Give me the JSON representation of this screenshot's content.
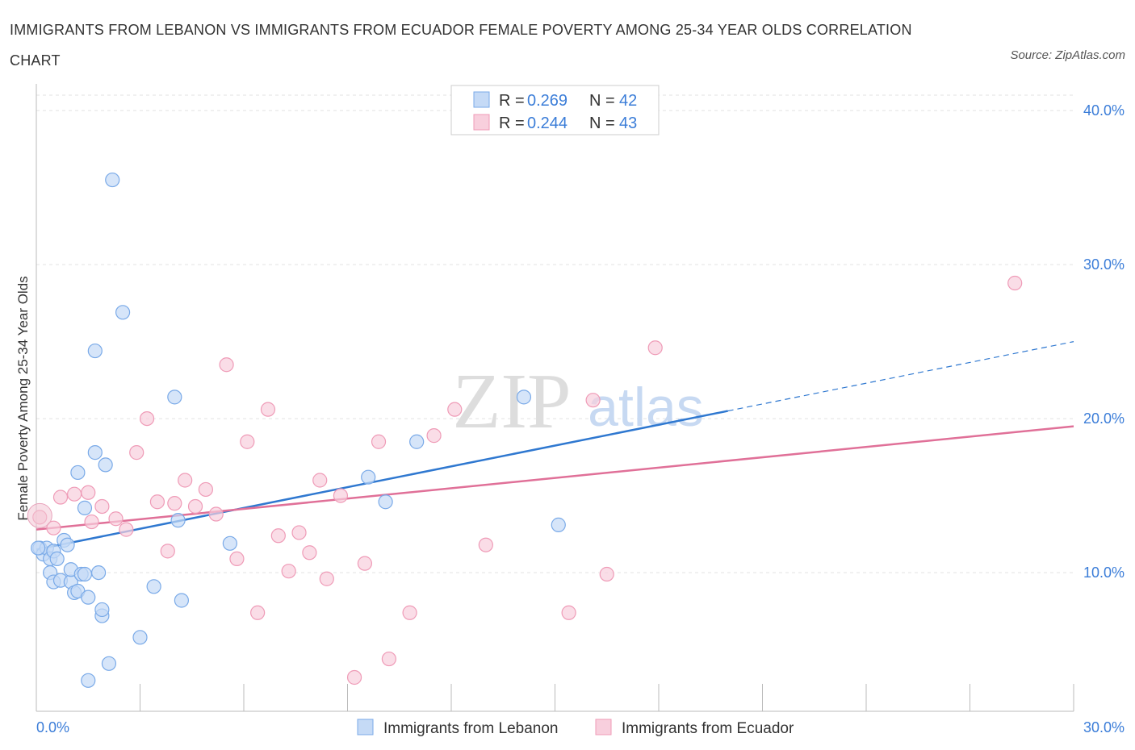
{
  "header": {
    "title": "IMMIGRANTS FROM LEBANON VS IMMIGRANTS FROM ECUADOR FEMALE POVERTY AMONG 25-34 YEAR OLDS CORRELATION CHART",
    "source": "Source: ZipAtlas.com"
  },
  "watermark": {
    "zip": "ZIP",
    "atlas": "atlas"
  },
  "legend": {
    "rows": [
      {
        "r_label": "R =",
        "r_value": "0.269",
        "n_label": "N =",
        "n_value": "42"
      },
      {
        "r_label": "R =",
        "r_value": "0.244",
        "n_label": "N =",
        "n_value": "43"
      }
    ]
  },
  "chart_data": {
    "type": "scatter",
    "ylabel": "Female Poverty Among 25-34 Year Olds",
    "xlim": [
      0,
      30
    ],
    "ylim": [
      1,
      41
    ],
    "x_tick_labels": [
      {
        "value": 0,
        "label": "0.0%"
      },
      {
        "value": 30,
        "label": "30.0%"
      }
    ],
    "y_tick_labels": [
      {
        "value": 10,
        "label": "10.0%"
      },
      {
        "value": 20,
        "label": "20.0%"
      },
      {
        "value": 30,
        "label": "30.0%"
      },
      {
        "value": 40,
        "label": "40.0%"
      }
    ],
    "grid": true,
    "legend_position": "top-center",
    "series": [
      {
        "name": "Immigrants from Lebanon",
        "color": "#7aaae8",
        "fill": "#c5daf6",
        "line_color": "#2f78d0",
        "r": 0.269,
        "n": 42,
        "trend": {
          "x_start": 0,
          "y_start": 11.5,
          "x_solid_end": 20.0,
          "y_solid_end": 20.5,
          "x_end": 30,
          "y_end": 25.0
        },
        "points": [
          [
            0.1,
            11.6
          ],
          [
            0.2,
            11.2
          ],
          [
            0.3,
            11.6
          ],
          [
            0.4,
            10.9
          ],
          [
            0.4,
            10.0
          ],
          [
            0.5,
            11.4
          ],
          [
            0.5,
            9.4
          ],
          [
            0.6,
            10.9
          ],
          [
            0.7,
            9.5
          ],
          [
            0.8,
            12.1
          ],
          [
            0.9,
            11.8
          ],
          [
            1.0,
            9.4
          ],
          [
            1.0,
            10.2
          ],
          [
            1.1,
            8.7
          ],
          [
            1.2,
            8.8
          ],
          [
            1.2,
            16.5
          ],
          [
            1.3,
            9.9
          ],
          [
            1.4,
            9.9
          ],
          [
            1.4,
            14.2
          ],
          [
            1.5,
            8.4
          ],
          [
            1.5,
            3.0
          ],
          [
            1.7,
            24.4
          ],
          [
            1.7,
            17.8
          ],
          [
            1.8,
            10.0
          ],
          [
            1.9,
            7.2
          ],
          [
            1.9,
            7.6
          ],
          [
            2.0,
            17.0
          ],
          [
            2.1,
            4.1
          ],
          [
            2.2,
            35.5
          ],
          [
            2.5,
            26.9
          ],
          [
            3.0,
            5.8
          ],
          [
            3.4,
            9.1
          ],
          [
            4.0,
            21.4
          ],
          [
            4.1,
            13.4
          ],
          [
            4.2,
            8.2
          ],
          [
            5.6,
            11.9
          ],
          [
            9.6,
            16.2
          ],
          [
            10.1,
            14.6
          ],
          [
            11.0,
            18.5
          ],
          [
            14.1,
            21.4
          ],
          [
            15.1,
            13.1
          ],
          [
            0.05,
            11.6
          ]
        ]
      },
      {
        "name": "Immigrants from Ecuador",
        "color": "#ef9bb7",
        "fill": "#f8cfdd",
        "line_color": "#e07098",
        "r": 0.244,
        "n": 43,
        "trend": {
          "x_start": 0,
          "y_start": 12.8,
          "x_end": 30,
          "y_end": 19.5
        },
        "points": [
          [
            0.1,
            13.6
          ],
          [
            0.5,
            12.9
          ],
          [
            0.7,
            14.9
          ],
          [
            1.1,
            15.1
          ],
          [
            1.5,
            15.2
          ],
          [
            1.6,
            13.3
          ],
          [
            1.9,
            14.3
          ],
          [
            2.3,
            13.5
          ],
          [
            2.6,
            12.8
          ],
          [
            2.9,
            17.8
          ],
          [
            3.2,
            20.0
          ],
          [
            3.5,
            14.6
          ],
          [
            3.8,
            11.4
          ],
          [
            4.0,
            14.5
          ],
          [
            4.3,
            16.0
          ],
          [
            4.6,
            14.3
          ],
          [
            4.9,
            15.4
          ],
          [
            5.2,
            13.8
          ],
          [
            5.5,
            23.5
          ],
          [
            5.8,
            10.9
          ],
          [
            6.1,
            18.5
          ],
          [
            6.4,
            7.4
          ],
          [
            6.7,
            20.6
          ],
          [
            7.0,
            12.4
          ],
          [
            7.3,
            10.1
          ],
          [
            7.6,
            12.6
          ],
          [
            7.9,
            11.3
          ],
          [
            8.2,
            16.0
          ],
          [
            8.4,
            9.6
          ],
          [
            8.8,
            15.0
          ],
          [
            9.2,
            3.2
          ],
          [
            9.5,
            10.6
          ],
          [
            9.9,
            18.5
          ],
          [
            10.2,
            4.4
          ],
          [
            10.8,
            7.4
          ],
          [
            11.5,
            18.9
          ],
          [
            12.1,
            20.6
          ],
          [
            13.0,
            11.8
          ],
          [
            15.4,
            7.4
          ],
          [
            16.1,
            21.2
          ],
          [
            16.5,
            9.9
          ],
          [
            17.9,
            24.6
          ],
          [
            28.3,
            28.8
          ]
        ]
      }
    ]
  }
}
